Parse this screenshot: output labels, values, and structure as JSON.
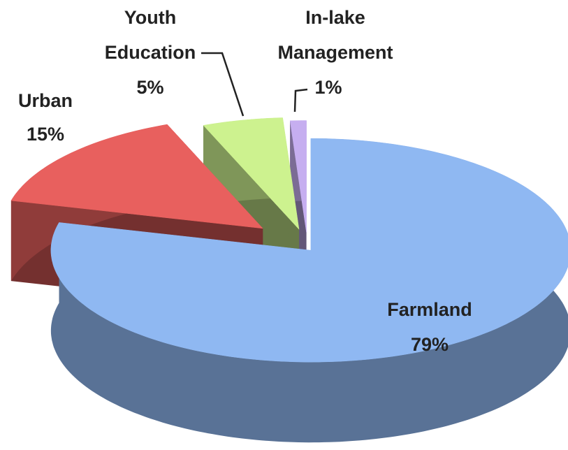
{
  "chart_data": {
    "type": "pie3d",
    "categories": [
      "Farmland",
      "Urban",
      "Youth Education",
      "In-lake Management"
    ],
    "values": [
      79,
      15,
      5,
      1
    ],
    "value_labels": [
      "79%",
      "15%",
      "5%",
      "1%"
    ],
    "colors": [
      "#8fb8f2",
      "#e8605e",
      "#cdf28f",
      "#c6aef0"
    ]
  }
}
